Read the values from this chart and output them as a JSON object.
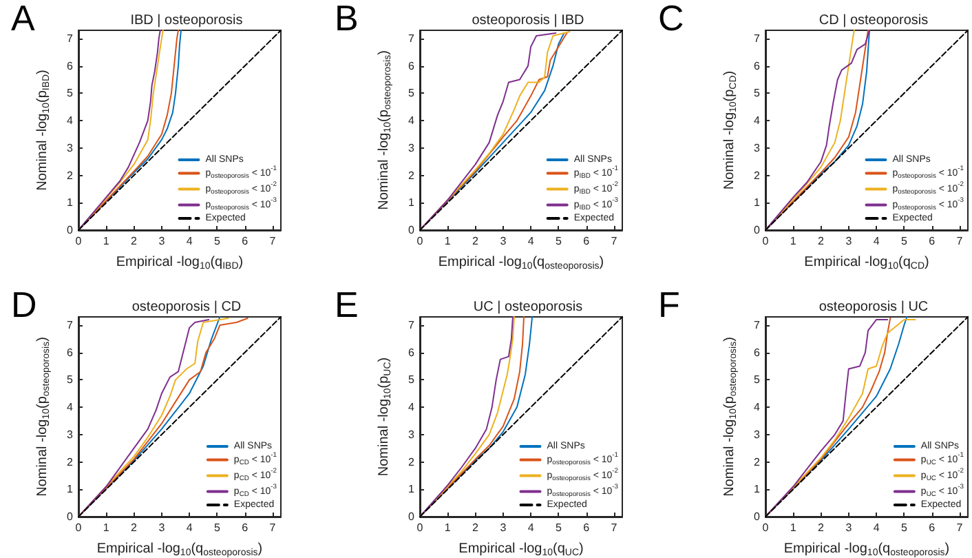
{
  "chart_data": [
    {
      "type": "line",
      "title": "IBD | osteoporosis",
      "xlabel": "Empirical -log$_{10}$(q$_{IBD}$)",
      "ylabel": "Nominal -log$_{10}$(p$_{IBD}$)",
      "annotations": [
        "A"
      ],
      "xlim": [
        0,
        7.3
      ],
      "ylim": [
        0,
        7.3
      ],
      "xticks": [
        0,
        1,
        2,
        3,
        4,
        5,
        6,
        7
      ],
      "yticks": [
        0,
        1,
        2,
        3,
        4,
        5,
        6,
        7
      ],
      "legend": "bottom right",
      "series": [
        {
          "name": "All SNPs",
          "color": "#0072bd",
          "x": [
            0,
            2,
            2.5,
            3,
            3.2,
            3.4,
            3.5,
            3.6,
            3.65,
            3.7
          ],
          "values": [
            0,
            2.1,
            2.6,
            3.3,
            3.7,
            4.3,
            5,
            6,
            6.8,
            7.3
          ]
        },
        {
          "name": "p$_{osteoporosis}$ < 10$^{-1}$",
          "color": "#d95319",
          "x": [
            0,
            2,
            2.5,
            3,
            3.2,
            3.35,
            3.45,
            3.55,
            3.6
          ],
          "values": [
            0,
            2.15,
            2.7,
            3.5,
            4.2,
            5,
            6,
            7,
            7.3
          ]
        },
        {
          "name": "p$_{osteoporosis}$ < 10$^{-2}$",
          "color": "#edb120",
          "x": [
            0,
            1.5,
            2,
            2.5,
            2.6,
            2.7,
            2.85,
            3,
            3.05
          ],
          "values": [
            0,
            1.75,
            2.4,
            3.3,
            4,
            5,
            6,
            7,
            7.3
          ]
        },
        {
          "name": "p$_{osteoporosis}$ < 10$^{-3}$",
          "color": "#7e2f8e",
          "x": [
            0,
            1,
            1.5,
            1.8,
            2.2,
            2.5,
            2.6,
            2.65,
            2.75,
            2.85,
            2.9,
            2.95
          ],
          "values": [
            0,
            1.2,
            1.8,
            2.3,
            3.2,
            4,
            4.7,
            5.3,
            5.8,
            6.5,
            7,
            7.3
          ]
        },
        {
          "name": "Expected",
          "color": "#000000",
          "line_style": "dashed",
          "x": [
            0,
            7.3
          ],
          "values": [
            0,
            7.3
          ]
        }
      ]
    },
    {
      "type": "line",
      "title": "osteoporosis | IBD",
      "xlabel": "Empirical -log$_{10}$(q$_{osteoporosis}$)",
      "ylabel": "Nominal -log$_{10}$(p$_{osteoporosis}$)",
      "annotations": [
        "B"
      ],
      "xlim": [
        0,
        7.3
      ],
      "ylim": [
        0,
        7.3
      ],
      "xticks": [
        0,
        1,
        2,
        3,
        4,
        5,
        6,
        7
      ],
      "yticks": [
        0,
        1,
        2,
        3,
        4,
        5,
        6,
        7
      ],
      "legend": "bottom right",
      "series": [
        {
          "name": "All SNPs",
          "color": "#0072bd",
          "x": [
            0,
            2,
            3,
            4,
            4.5,
            4.8,
            5,
            5.2
          ],
          "values": [
            0,
            2.1,
            3.2,
            4.3,
            5.1,
            6,
            6.8,
            7.2
          ]
        },
        {
          "name": "p$_{IBD}$ < 10$^{-1}$",
          "color": "#d95319",
          "x": [
            0,
            2,
            3,
            3.5,
            4,
            4.3,
            4.6,
            4.7,
            5,
            5.3
          ],
          "values": [
            0,
            2.15,
            3.4,
            4,
            4.9,
            5.5,
            5.6,
            6.2,
            6.7,
            7.2
          ]
        },
        {
          "name": "p$_{IBD}$ < 10$^{-2}$",
          "color": "#edb120",
          "x": [
            0,
            2,
            2.5,
            3,
            3.4,
            3.6,
            3.9,
            4.3,
            4.5,
            4.6,
            4.8,
            5.4
          ],
          "values": [
            0,
            2.2,
            2.8,
            3.5,
            4.4,
            4.9,
            5.4,
            5.4,
            5.6,
            6.5,
            7.1,
            7.25
          ]
        },
        {
          "name": "p$_{IBD}$ < 10$^{-3}$",
          "color": "#7e2f8e",
          "x": [
            0,
            1,
            2,
            2.5,
            2.8,
            3,
            3.2,
            3.6,
            3.9,
            4,
            4.2,
            4.9
          ],
          "values": [
            0,
            1.1,
            2.4,
            3.2,
            4.2,
            4.7,
            5.4,
            5.5,
            6,
            6.7,
            7.1,
            7.2
          ]
        },
        {
          "name": "Expected",
          "color": "#000000",
          "line_style": "dashed",
          "x": [
            0,
            7.3
          ],
          "values": [
            0,
            7.3
          ]
        }
      ]
    },
    {
      "type": "line",
      "title": "CD | osteoporosis",
      "xlabel": "Empirical -log$_{10}$(q$_{CD}$)",
      "ylabel": "Nominal -log$_{10}$(p$_{CD}$)",
      "annotations": [
        "C"
      ],
      "xlim": [
        0,
        7.3
      ],
      "ylim": [
        0,
        7.3
      ],
      "xticks": [
        0,
        1,
        2,
        3,
        4,
        5,
        6,
        7
      ],
      "yticks": [
        0,
        1,
        2,
        3,
        4,
        5,
        6,
        7
      ],
      "legend": "bottom right",
      "series": [
        {
          "name": "All SNPs",
          "color": "#0072bd",
          "x": [
            0,
            2,
            2.5,
            3,
            3.3,
            3.5,
            3.65,
            3.75
          ],
          "values": [
            0,
            2.05,
            2.5,
            3.1,
            3.8,
            4.6,
            5.8,
            7.3
          ]
        },
        {
          "name": "p$_{osteoporosis}$ < 10$^{-1}$",
          "color": "#d95319",
          "x": [
            0,
            2,
            2.5,
            3,
            3.25,
            3.4,
            3.55,
            3.7
          ],
          "values": [
            0,
            2.1,
            2.65,
            3.4,
            4.3,
            5.3,
            6.3,
            7.3
          ]
        },
        {
          "name": "p$_{osteoporosis}$ < 10$^{-2}$",
          "color": "#edb120",
          "x": [
            0,
            1.5,
            2,
            2.5,
            2.7,
            2.85,
            3,
            3.15,
            3.2
          ],
          "values": [
            0,
            1.7,
            2.3,
            3.2,
            4,
            5,
            6,
            7,
            7.3
          ]
        },
        {
          "name": "p$_{osteoporosis}$ < 10$^{-3}$",
          "color": "#7e2f8e",
          "x": [
            0,
            1,
            1.5,
            2,
            2.2,
            2.3,
            2.45,
            2.6,
            2.75,
            3.1,
            3.3,
            3.6,
            3.75
          ],
          "values": [
            0,
            1.2,
            1.75,
            2.5,
            3.1,
            3.8,
            4.7,
            5.5,
            5.85,
            6.1,
            6.6,
            6.8,
            7.3
          ]
        },
        {
          "name": "Expected",
          "color": "#000000",
          "line_style": "dashed",
          "x": [
            0,
            7.3
          ],
          "values": [
            0,
            7.3
          ]
        }
      ]
    },
    {
      "type": "line",
      "title": "osteoporosis | CD",
      "xlabel": "Empirical -log$_{10}$(q$_{osteoporosis}$)",
      "ylabel": "Nominal -log$_{10}$(p$_{osteoporosis}$)",
      "annotations": [
        "D"
      ],
      "xlim": [
        0,
        7.3
      ],
      "ylim": [
        0,
        7.3
      ],
      "xticks": [
        0,
        1,
        2,
        3,
        4,
        5,
        6,
        7
      ],
      "yticks": [
        0,
        1,
        2,
        3,
        4,
        5,
        6,
        7
      ],
      "legend": "bottom right",
      "series": [
        {
          "name": "All SNPs",
          "color": "#0072bd",
          "x": [
            0,
            2,
            3,
            4,
            4.5,
            4.8,
            5.1
          ],
          "values": [
            0,
            2.05,
            3.2,
            4.5,
            5.5,
            6.5,
            7.3
          ]
        },
        {
          "name": "p$_{CD}$ < 10$^{-1}$",
          "color": "#d95319",
          "x": [
            0,
            2,
            3,
            3.5,
            4,
            4.4,
            4.6,
            4.9,
            5.1,
            5.7,
            6.1
          ],
          "values": [
            0,
            2.1,
            3.4,
            4.2,
            5,
            5.3,
            6,
            6.5,
            7,
            7.1,
            7.25
          ]
        },
        {
          "name": "p$_{CD}$ < 10$^{-2}$",
          "color": "#edb120",
          "x": [
            0,
            2,
            2.5,
            3,
            3.3,
            3.5,
            3.9,
            4.2,
            4.3,
            4.5,
            5.4
          ],
          "values": [
            0,
            2.2,
            2.9,
            3.7,
            4.4,
            5,
            5.4,
            5.6,
            6.4,
            7.1,
            7.25
          ]
        },
        {
          "name": "p$_{CD}$ < 10$^{-3}$",
          "color": "#7e2f8e",
          "x": [
            0,
            1,
            2,
            2.5,
            2.8,
            3,
            3.3,
            3.6,
            3.8,
            4,
            4.2,
            4.7
          ],
          "values": [
            0,
            1.1,
            2.5,
            3.2,
            3.9,
            4.5,
            5.1,
            5.3,
            6.1,
            6.9,
            7.1,
            7.2
          ]
        },
        {
          "name": "Expected",
          "color": "#000000",
          "line_style": "dashed",
          "x": [
            0,
            7.3
          ],
          "values": [
            0,
            7.3
          ]
        }
      ]
    },
    {
      "type": "line",
      "title": "UC | osteoporosis",
      "xlabel": "Empirical -log$_{10}$(q$_{UC}$)",
      "ylabel": "Nominal -log$_{10}$(p$_{UC}$)",
      "annotations": [
        "E"
      ],
      "xlim": [
        0,
        7.3
      ],
      "ylim": [
        0,
        7.3
      ],
      "xticks": [
        0,
        1,
        2,
        3,
        4,
        5,
        6,
        7
      ],
      "yticks": [
        0,
        1,
        2,
        3,
        4,
        5,
        6,
        7
      ],
      "legend": "bottom right",
      "series": [
        {
          "name": "All SNPs",
          "color": "#0072bd",
          "x": [
            0,
            2,
            2.5,
            3,
            3.5,
            3.8,
            3.95,
            4.05
          ],
          "values": [
            0,
            2.05,
            2.5,
            3.1,
            4,
            5.2,
            6.3,
            7.3
          ]
        },
        {
          "name": "p$_{osteoporosis}$ < 10$^{-1}$",
          "color": "#d95319",
          "x": [
            0,
            2,
            2.5,
            3,
            3.4,
            3.6,
            3.7,
            3.75
          ],
          "values": [
            0,
            2.1,
            2.6,
            3.3,
            4.3,
            5.3,
            6.3,
            7.3
          ]
        },
        {
          "name": "p$_{osteoporosis}$ < 10$^{-2}$",
          "color": "#edb120",
          "x": [
            0,
            1.5,
            2,
            2.5,
            2.8,
            3,
            3.15,
            3.25,
            3.35,
            3.4
          ],
          "values": [
            0,
            1.65,
            2.3,
            3,
            3.8,
            4.6,
            5.2,
            5.8,
            6.5,
            7.3
          ]
        },
        {
          "name": "p$_{osteoporosis}$ < 10$^{-3}$",
          "color": "#7e2f8e",
          "x": [
            0,
            1,
            1.5,
            2,
            2.4,
            2.6,
            2.75,
            2.9,
            3.2,
            3.3,
            3.35
          ],
          "values": [
            0,
            1.15,
            1.8,
            2.5,
            3.2,
            4,
            5,
            5.75,
            5.85,
            6.5,
            7.3
          ]
        },
        {
          "name": "Expected",
          "color": "#000000",
          "line_style": "dashed",
          "x": [
            0,
            7.3
          ],
          "values": [
            0,
            7.3
          ]
        }
      ]
    },
    {
      "type": "line",
      "title": "osteoporosis | UC",
      "xlabel": "Empirical -log$_{10}$(q$_{osteoporosis}$)",
      "ylabel": "Nominal -log$_{10}$(p$_{osteoporosis}$)",
      "annotations": [
        "F"
      ],
      "xlim": [
        0,
        7.3
      ],
      "ylim": [
        0,
        7.3
      ],
      "xticks": [
        0,
        1,
        2,
        3,
        4,
        5,
        6,
        7
      ],
      "yticks": [
        0,
        1,
        2,
        3,
        4,
        5,
        6,
        7
      ],
      "legend": "bottom right",
      "series": [
        {
          "name": "All SNPs",
          "color": "#0072bd",
          "x": [
            0,
            2,
            3,
            4,
            4.5,
            4.8,
            5,
            5.1
          ],
          "values": [
            0,
            2.05,
            3.2,
            4.4,
            5.4,
            6.3,
            7,
            7.3
          ]
        },
        {
          "name": "p$_{UC}$ < 10$^{-1}$",
          "color": "#d95319",
          "x": [
            0,
            2,
            3,
            3.5,
            3.8,
            4.1,
            4.3,
            4.4,
            4.5
          ],
          "values": [
            0,
            2.1,
            3.4,
            4,
            4.6,
            5.3,
            6,
            6.7,
            7.25
          ]
        },
        {
          "name": "p$_{UC}$ < 10$^{-2}$",
          "color": "#edb120",
          "x": [
            0,
            2,
            2.5,
            3,
            3.5,
            3.7,
            4,
            4.2,
            4.4,
            5,
            5.4
          ],
          "values": [
            0,
            2.15,
            2.8,
            3.6,
            4.5,
            5.4,
            5.5,
            6.2,
            6.7,
            7.2,
            7.2
          ]
        },
        {
          "name": "p$_{UC}$ < 10$^{-3}$",
          "color": "#7e2f8e",
          "x": [
            0,
            1,
            2,
            2.5,
            2.8,
            2.9,
            3,
            3.4,
            3.6,
            3.7,
            4,
            4.4
          ],
          "values": [
            0,
            1.1,
            2.4,
            3,
            3.5,
            4.5,
            5.4,
            5.5,
            6,
            6.8,
            7.2,
            7.2
          ]
        },
        {
          "name": "Expected",
          "color": "#000000",
          "line_style": "dashed",
          "x": [
            0,
            7.3
          ],
          "values": [
            0,
            7.3
          ]
        }
      ]
    }
  ]
}
